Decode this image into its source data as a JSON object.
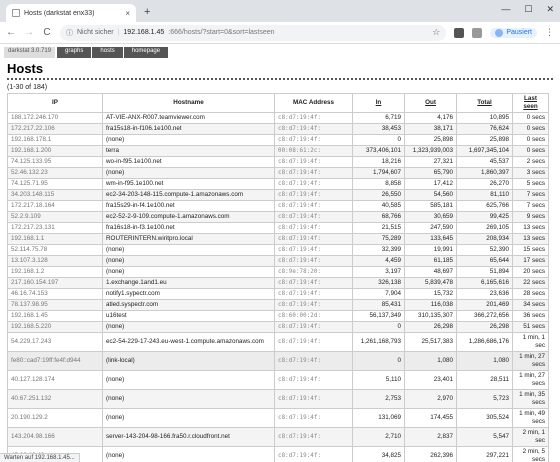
{
  "browser": {
    "tab_title": "Hosts (darkstat enx33)",
    "tab_close": "×",
    "new_tab": "+",
    "win_min": "—",
    "win_max": "☐",
    "win_close": "✕",
    "back": "←",
    "forward": "→",
    "reload": "C",
    "info_icon": "ⓘ",
    "insecure_label": "Nicht sicher",
    "separator": "|",
    "url_host": "192.168.1.45",
    "url_path": ":666/hosts/?start=0&sort=lastseen",
    "star": "☆",
    "paused_label": "Pausiert",
    "menu": "⋮",
    "status_text": "Warten auf 192.168.1.45..."
  },
  "nav": {
    "brand": "darkstat 3.0.719",
    "links": [
      "graphs",
      "hosts",
      "homepage"
    ]
  },
  "page": {
    "title": "Hosts",
    "count": "(1-30 of 184)"
  },
  "table": {
    "headers": [
      "IP",
      "Hostname",
      "MAC Address",
      "In",
      "Out",
      "Total",
      "Last seen"
    ],
    "rows": [
      [
        "188.172.246.170",
        "AT-VIE-ANX-R007.teamviewer.com",
        "c8:d7:19:4f:",
        "6,719",
        "4,176",
        "10,895",
        "0 secs"
      ],
      [
        "172.217.22.106",
        "fra15s18-in-f106.1e100.net",
        "c8:d7:19:4f:",
        "38,453",
        "38,171",
        "76,624",
        "0 secs"
      ],
      [
        "192.168.178.1",
        "(none)",
        "c8:d7:19:4f:",
        "0",
        "25,898",
        "25,898",
        "0 secs"
      ],
      [
        "192.168.1.200",
        "terra",
        "00:08:61:2c:",
        "373,406,101",
        "1,323,939,003",
        "1,697,345,104",
        "0 secs"
      ],
      [
        "74.125.133.95",
        "wo-in-f95.1e100.net",
        "c8:d7:19:4f:",
        "18,216",
        "27,321",
        "45,537",
        "2 secs"
      ],
      [
        "52.46.132.23",
        "(none)",
        "c8:d7:19:4f:",
        "1,794,607",
        "65,790",
        "1,860,397",
        "3 secs"
      ],
      [
        "74.125.71.95",
        "wm-in-f95.1e100.net",
        "c8:d7:19:4f:",
        "8,858",
        "17,412",
        "26,270",
        "5 secs"
      ],
      [
        "34.203.148.115",
        "ec2-34-203-148-115.compute-1.amazonaws.com",
        "c8:d7:19:4f:",
        "26,550",
        "54,560",
        "81,110",
        "7 secs"
      ],
      [
        "172.217.18.164",
        "fra15s29-in-f4.1e100.net",
        "c8:d7:19:4f:",
        "40,585",
        "585,181",
        "625,766",
        "7 secs"
      ],
      [
        "52.2.9.109",
        "ec2-52-2-9-109.compute-1.amazonaws.com",
        "c8:d7:19:4f:",
        "68,766",
        "30,659",
        "99,425",
        "9 secs"
      ],
      [
        "172.217.23.131",
        "fra16s18-in-f3.1e100.net",
        "c8:d7:19:4f:",
        "21,515",
        "247,590",
        "269,105",
        "13 secs"
      ],
      [
        "192.168.1.1",
        "ROUTERINTERN.wiritpro.local",
        "c8:d7:19:4f:",
        "75,289",
        "133,645",
        "208,934",
        "13 secs"
      ],
      [
        "52.114.75.78",
        "(none)",
        "c8:d7:19:4f:",
        "32,399",
        "19,991",
        "52,390",
        "15 secs"
      ],
      [
        "13.107.3.128",
        "(none)",
        "c8:d7:19:4f:",
        "4,459",
        "61,185",
        "65,644",
        "17 secs"
      ],
      [
        "192.168.1.2",
        "(none)",
        "c8:9e:78:20:",
        "3,197",
        "48,697",
        "51,894",
        "20 secs"
      ],
      [
        "217.160.154.197",
        "1.exchange.1and1.eu",
        "c8:d7:19:4f:",
        "326,138",
        "5,839,478",
        "6,165,616",
        "22 secs"
      ],
      [
        "46.16.74.153",
        "notify1.sypectr.com",
        "c8:d7:19:4f:",
        "7,904",
        "15,732",
        "23,636",
        "28 secs"
      ],
      [
        "78.137.98.95",
        "atled.syspectr.com",
        "c8:d7:19:4f:",
        "85,431",
        "116,038",
        "201,469",
        "34 secs"
      ],
      [
        "192.168.1.45",
        "u16test",
        "c8:60:00:2d:",
        "56,137,349",
        "310,135,307",
        "366,272,656",
        "36 secs"
      ],
      [
        "192.168.5.220",
        "(none)",
        "c8:d7:19:4f:",
        "0",
        "26,298",
        "26,298",
        "51 secs"
      ],
      [
        "54.229.17.243",
        "ec2-54-229-17-243.eu-west-1.compute.amazonaws.com",
        "c8:d7:19:4f:",
        "1,261,168,793",
        "25,517,383",
        "1,286,686,176",
        "1 min, 1 sec"
      ],
      [
        "fe80::cad7:19ff:fe4f:d944",
        "(link-local)",
        "c8:d7:19:4f:",
        "0",
        "1,080",
        "1,080",
        "1 min, 27 secs"
      ],
      [
        "40.127.128.174",
        "(none)",
        "c8:d7:19:4f:",
        "5,110",
        "23,401",
        "28,511",
        "1 min, 27 secs"
      ],
      [
        "40.67.251.132",
        "(none)",
        "c8:d7:19:4f:",
        "2,753",
        "2,970",
        "5,723",
        "1 min, 35 secs"
      ],
      [
        "20.190.129.2",
        "(none)",
        "c8:d7:19:4f:",
        "131,069",
        "174,455",
        "305,524",
        "1 min, 49 secs"
      ],
      [
        "143.204.98.166",
        "server-143-204-98-166.fra50.r.cloudfront.net",
        "c8:d7:19:4f:",
        "2,710",
        "2,837",
        "5,547",
        "2 min, 1 sec"
      ],
      [
        "45.60.13.42",
        "(none)",
        "c8:d7:19:4f:",
        "34,825",
        "262,396",
        "297,221",
        "2 min, 5 secs"
      ]
    ]
  }
}
